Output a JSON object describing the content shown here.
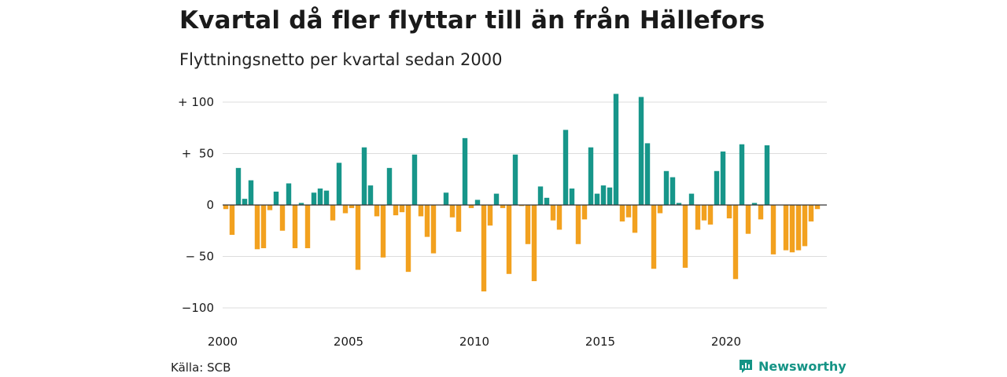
{
  "header": {
    "title": "Kvartal då fler flyttar till än från Hällefors",
    "subtitle": "Flyttningsnetto per kvartal sedan 2000"
  },
  "footer": {
    "source": "Källa: SCB",
    "brand": "Newsworthy"
  },
  "colors": {
    "positive": "#17968a",
    "negative": "#f2a11f",
    "grid": "#dddddd",
    "zero_line": "#333333",
    "brand": "#159486"
  },
  "icons": {
    "brand_logo": "newsworthy-logo-icon"
  },
  "chart_data": {
    "type": "bar",
    "title": "Kvartal då fler flyttar till än från Hällefors",
    "subtitle": "Flyttningsnetto per kvartal sedan 2000",
    "xlabel": "",
    "ylabel": "",
    "ylim": [
      -110,
      110
    ],
    "xlim": [
      2000,
      2024
    ],
    "x_ticks": [
      2000,
      2005,
      2010,
      2015,
      2020
    ],
    "y_ticks": [
      {
        "value": 100,
        "label": "+ 100"
      },
      {
        "value": 50,
        "label": "+  50"
      },
      {
        "value": 0,
        "label": "0"
      },
      {
        "value": -50,
        "label": "− 50"
      },
      {
        "value": -100,
        "label": "−100"
      }
    ],
    "grid": true,
    "legend": "none",
    "start": "2000 Q1",
    "values": [
      -4,
      -29,
      36,
      6,
      24,
      -43,
      -42,
      -5,
      13,
      -25,
      21,
      -42,
      2,
      -42,
      12,
      16,
      14,
      -15,
      41,
      -8,
      -3,
      -63,
      56,
      19,
      -11,
      -51,
      36,
      -10,
      -7,
      -65,
      49,
      -11,
      -31,
      -47,
      0,
      12,
      -12,
      -26,
      65,
      -3,
      5,
      -84,
      -20,
      11,
      -3,
      -67,
      49,
      -1,
      -38,
      -74,
      18,
      7,
      -15,
      -24,
      73,
      16,
      -38,
      -14,
      56,
      11,
      19,
      17,
      108,
      -16,
      -12,
      -27,
      105,
      60,
      -62,
      -8,
      33,
      27,
      2,
      -61,
      11,
      -24,
      -15,
      -19,
      33,
      52,
      -13,
      -72,
      59,
      -28,
      2,
      -14,
      58,
      -48,
      0,
      -44,
      -46,
      -44,
      -40,
      -16,
      -4
    ]
  }
}
